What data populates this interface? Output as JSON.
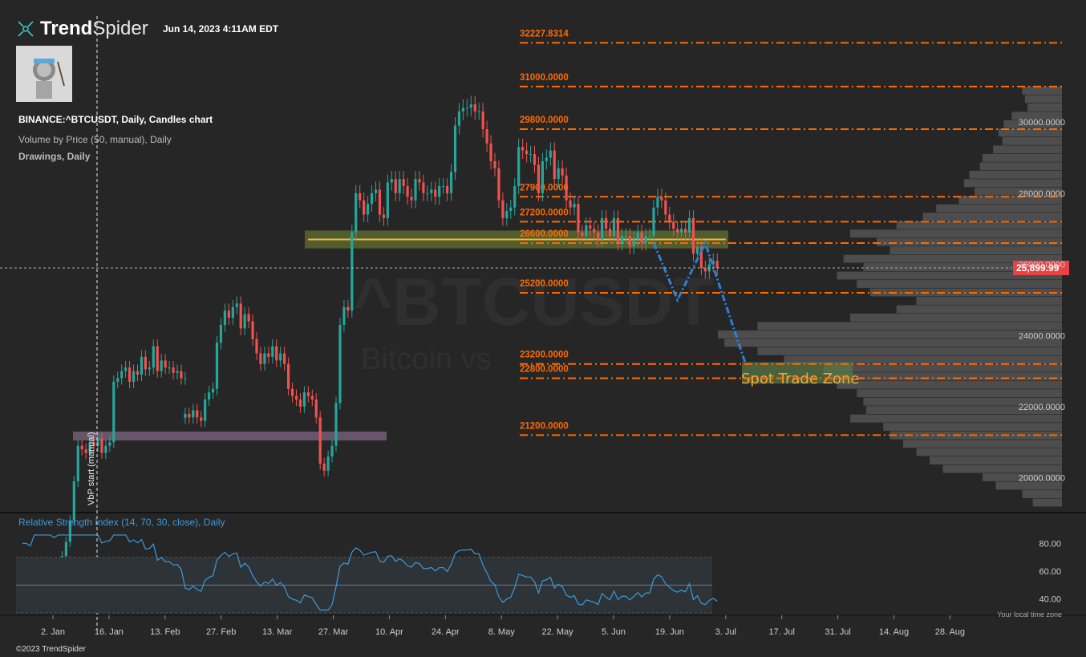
{
  "header": {
    "brand_bold": "Trend",
    "brand_light": "Spider",
    "timestamp": "Jun 14, 2023 4:11AM EDT",
    "symbol_line": "BINANCE:^BTCUSDT, Daily, Candles chart",
    "indicator_line": "Volume by Price (50, manual), Daily",
    "drawings_line": "Drawings, Daily",
    "rsi_title": "Relative Strength Index (14, 70, 30, close), Daily",
    "copyright": "©2023 TrendSpider",
    "tz_note": "Your local time zone"
  },
  "colors": {
    "background": "#262626",
    "up": "#26a69a",
    "down": "#ef5350",
    "level": "#ff6a00",
    "support_band": "#5c6b2e",
    "support_line": "#f2b73a",
    "purple_band": "#7d6680",
    "target_zone": "#5a7a49",
    "projection": "#2f7fd6",
    "rsi": "#3d9ad8",
    "price_tag": "#e84343"
  },
  "chart_data": {
    "type": "candlestick",
    "symbol": "^BTCUSDT",
    "watermark": "^BTCUSDT",
    "watermark_sub": "Bitcoin vs",
    "ylim": [
      19000,
      32800
    ],
    "y_ticks": [
      20000,
      22000,
      24000,
      26000,
      28000,
      30000
    ],
    "y_tick_labels": [
      "20000.0000",
      "22000.0000",
      "24000.0000",
      "26000.0000",
      "28000.0000",
      "30000.0000"
    ],
    "x_ticks": [
      "2. Jan",
      "16. Jan",
      "13. Feb",
      "27. Feb",
      "13. Mar",
      "27. Mar",
      "10. Apr",
      "24. Apr",
      "8. May",
      "22. May",
      "5. Jun",
      "19. Jun",
      "3. Jul",
      "17. Jul",
      "31. Jul",
      "14. Aug",
      "28. Aug"
    ],
    "last_price": 25899.99,
    "last_price_label": "25,899.99",
    "levels": [
      {
        "price": 32227.8314,
        "label": "32227.8314"
      },
      {
        "price": 31000,
        "label": "31000.0000"
      },
      {
        "price": 29800,
        "label": "29800.0000"
      },
      {
        "price": 27900,
        "label": "27900.0000"
      },
      {
        "price": 27200,
        "label": "27200.0000"
      },
      {
        "price": 26600,
        "label": "26600.0000"
      },
      {
        "price": 25200,
        "label": "25200.0000"
      },
      {
        "price": 23200,
        "label": "23200.0000"
      },
      {
        "price": 22800,
        "label": "22800.0000"
      },
      {
        "price": 21200,
        "label": "21200.0000"
      }
    ],
    "support_line_price": 26700,
    "zone_label": "Spot Trade Zone",
    "vbp_label": "VbP start (manual)",
    "closes": [
      {
        "start_day": 0,
        "values": [
          16500,
          16600,
          16700,
          16650,
          16900,
          17000,
          17200,
          17300,
          17400,
          17300,
          17500,
          17800,
          18200,
          18800,
          19900,
          20900,
          20800,
          20700,
          21000,
          20900,
          21100,
          20700,
          20900,
          21000,
          22700,
          22800,
          23000,
          23100,
          22700,
          23000,
          22900,
          23400,
          23050,
          23100,
          23700,
          23000,
          23300,
          23100,
          23100,
          22950,
          23000,
          22800,
          22800
        ]
      },
      {
        "start_day": 42,
        "values": [
          21800,
          21700,
          21900,
          21700,
          21600,
          22200,
          22400,
          22500,
          23800,
          24300,
          24700,
          24500,
          24800,
          24900,
          24200,
          24600,
          24400,
          23900,
          23500,
          23200,
          23500,
          23400,
          23700,
          23300,
          23500,
          23200,
          22500,
          22300,
          22200,
          22000,
          22400,
          22300,
          22200,
          21700,
          20400,
          20200,
          20600,
          20900,
          22100,
          24300,
          24800,
          24700,
          26900,
          28000,
          27800,
          27400,
          27700,
          28000,
          28100,
          27400,
          27300,
          28300,
          28400,
          28000,
          28400,
          28200,
          27900,
          27800,
          28400,
          28300,
          28000,
          28000,
          28100,
          27900,
          28200,
          28200,
          28000,
          28600,
          29900,
          30300,
          30400,
          30400,
          30500,
          30300,
          30300,
          29800,
          29400,
          28900,
          28700,
          27800,
          27300,
          27500,
          27600,
          28200,
          29300,
          29200,
          29100,
          29100,
          28800,
          28000,
          28900,
          29000,
          29200,
          28400,
          28700,
          28500,
          27800,
          27600,
          27700,
          26900,
          26800,
          27100,
          27000,
          26900,
          26700,
          27300,
          27000,
          26800,
          27300,
          26600,
          26800,
          26800,
          26500,
          26700,
          26900,
          26600,
          26800,
          26800,
          27600,
          27900,
          27800,
          27400,
          27200,
          27000,
          26900,
          27000,
          26900,
          27300,
          26300,
          26500,
          25900,
          25800,
          26000,
          26100,
          25900
        ]
      }
    ],
    "projection": [
      [
        160,
        26600
      ],
      [
        166,
        25000
      ],
      [
        173,
        26600
      ],
      [
        183,
        23250
      ]
    ],
    "rsi": {
      "ylim": [
        30,
        90
      ],
      "ticks": [
        40,
        60,
        80
      ],
      "tick_labels": [
        "40.00",
        "60.00",
        "80.00"
      ],
      "overbought": 70,
      "oversold": 30,
      "mid": 50
    }
  }
}
